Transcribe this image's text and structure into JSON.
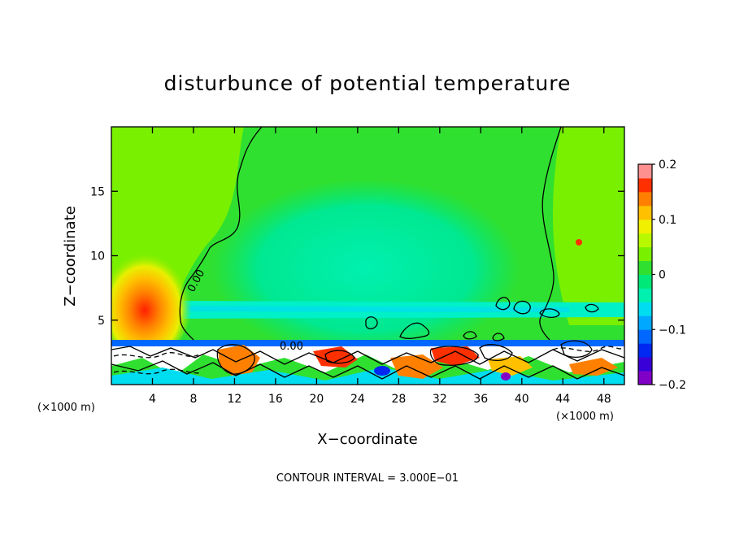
{
  "chart_data": {
    "type": "heatmap",
    "title": "disturbunce of potential temperature",
    "xlabel": "X−coordinate",
    "ylabel": "Z−coordinate",
    "x_unit_left": "(×1000 m)",
    "x_unit_right": "(×1000 m)",
    "xlim": [
      0,
      50
    ],
    "ylim": [
      0,
      20
    ],
    "x_ticks": [
      4,
      8,
      12,
      16,
      20,
      24,
      28,
      32,
      36,
      40,
      44,
      48
    ],
    "x_tick_labels": [
      "4",
      "8",
      "12",
      "16",
      "20",
      "24",
      "28",
      "32",
      "36",
      "40",
      "44",
      "48"
    ],
    "y_ticks": [
      5,
      10,
      15
    ],
    "y_tick_labels": [
      "5",
      "10",
      "15"
    ],
    "contour_labels": [
      "0.00",
      "0.00"
    ],
    "contour_interval_text": "CONTOUR INTERVAL = 3.000E−01",
    "colorbar": {
      "range": [
        -0.2,
        0.2
      ],
      "tick_values": [
        0.2,
        0.1,
        0,
        -0.1,
        -0.2
      ],
      "tick_labels": [
        "0.2",
        "0.1",
        "0",
        "−0.1",
        "−0.2"
      ],
      "levels": [
        {
          "from": -0.2,
          "to": -0.175,
          "color": "#8000c8"
        },
        {
          "from": -0.175,
          "to": -0.15,
          "color": "#3a00d8"
        },
        {
          "from": -0.15,
          "to": -0.125,
          "color": "#0028f0"
        },
        {
          "from": -0.125,
          "to": -0.1,
          "color": "#0068ff"
        },
        {
          "from": -0.1,
          "to": -0.075,
          "color": "#00a8ff"
        },
        {
          "from": -0.075,
          "to": -0.05,
          "color": "#00dcf0"
        },
        {
          "from": -0.05,
          "to": -0.025,
          "color": "#00f0b0"
        },
        {
          "from": -0.025,
          "to": 0,
          "color": "#00e878"
        },
        {
          "from": 0,
          "to": 0.025,
          "color": "#30e030"
        },
        {
          "from": 0.025,
          "to": 0.05,
          "color": "#78f000"
        },
        {
          "from": 0.05,
          "to": 0.075,
          "color": "#b8f800"
        },
        {
          "from": 0.075,
          "to": 0.1,
          "color": "#f0f000"
        },
        {
          "from": 0.1,
          "to": 0.125,
          "color": "#ffc000"
        },
        {
          "from": 0.125,
          "to": 0.15,
          "color": "#ff8000"
        },
        {
          "from": 0.15,
          "to": 0.175,
          "color": "#ff3000"
        },
        {
          "from": 0.175,
          "to": 0.2,
          "color": "#ff9090"
        }
      ]
    },
    "field_features": [
      {
        "name": "warm-anomaly",
        "x": 4,
        "z": 5.5,
        "value": 0.18
      },
      {
        "name": "cool-region",
        "x": 24,
        "z": 10,
        "value": -0.04
      },
      {
        "name": "cool-band",
        "x": 25,
        "z": 5.8,
        "value": -0.06
      },
      {
        "name": "warm-spot",
        "x": 45.5,
        "z": 11,
        "value": 0.2
      }
    ]
  }
}
